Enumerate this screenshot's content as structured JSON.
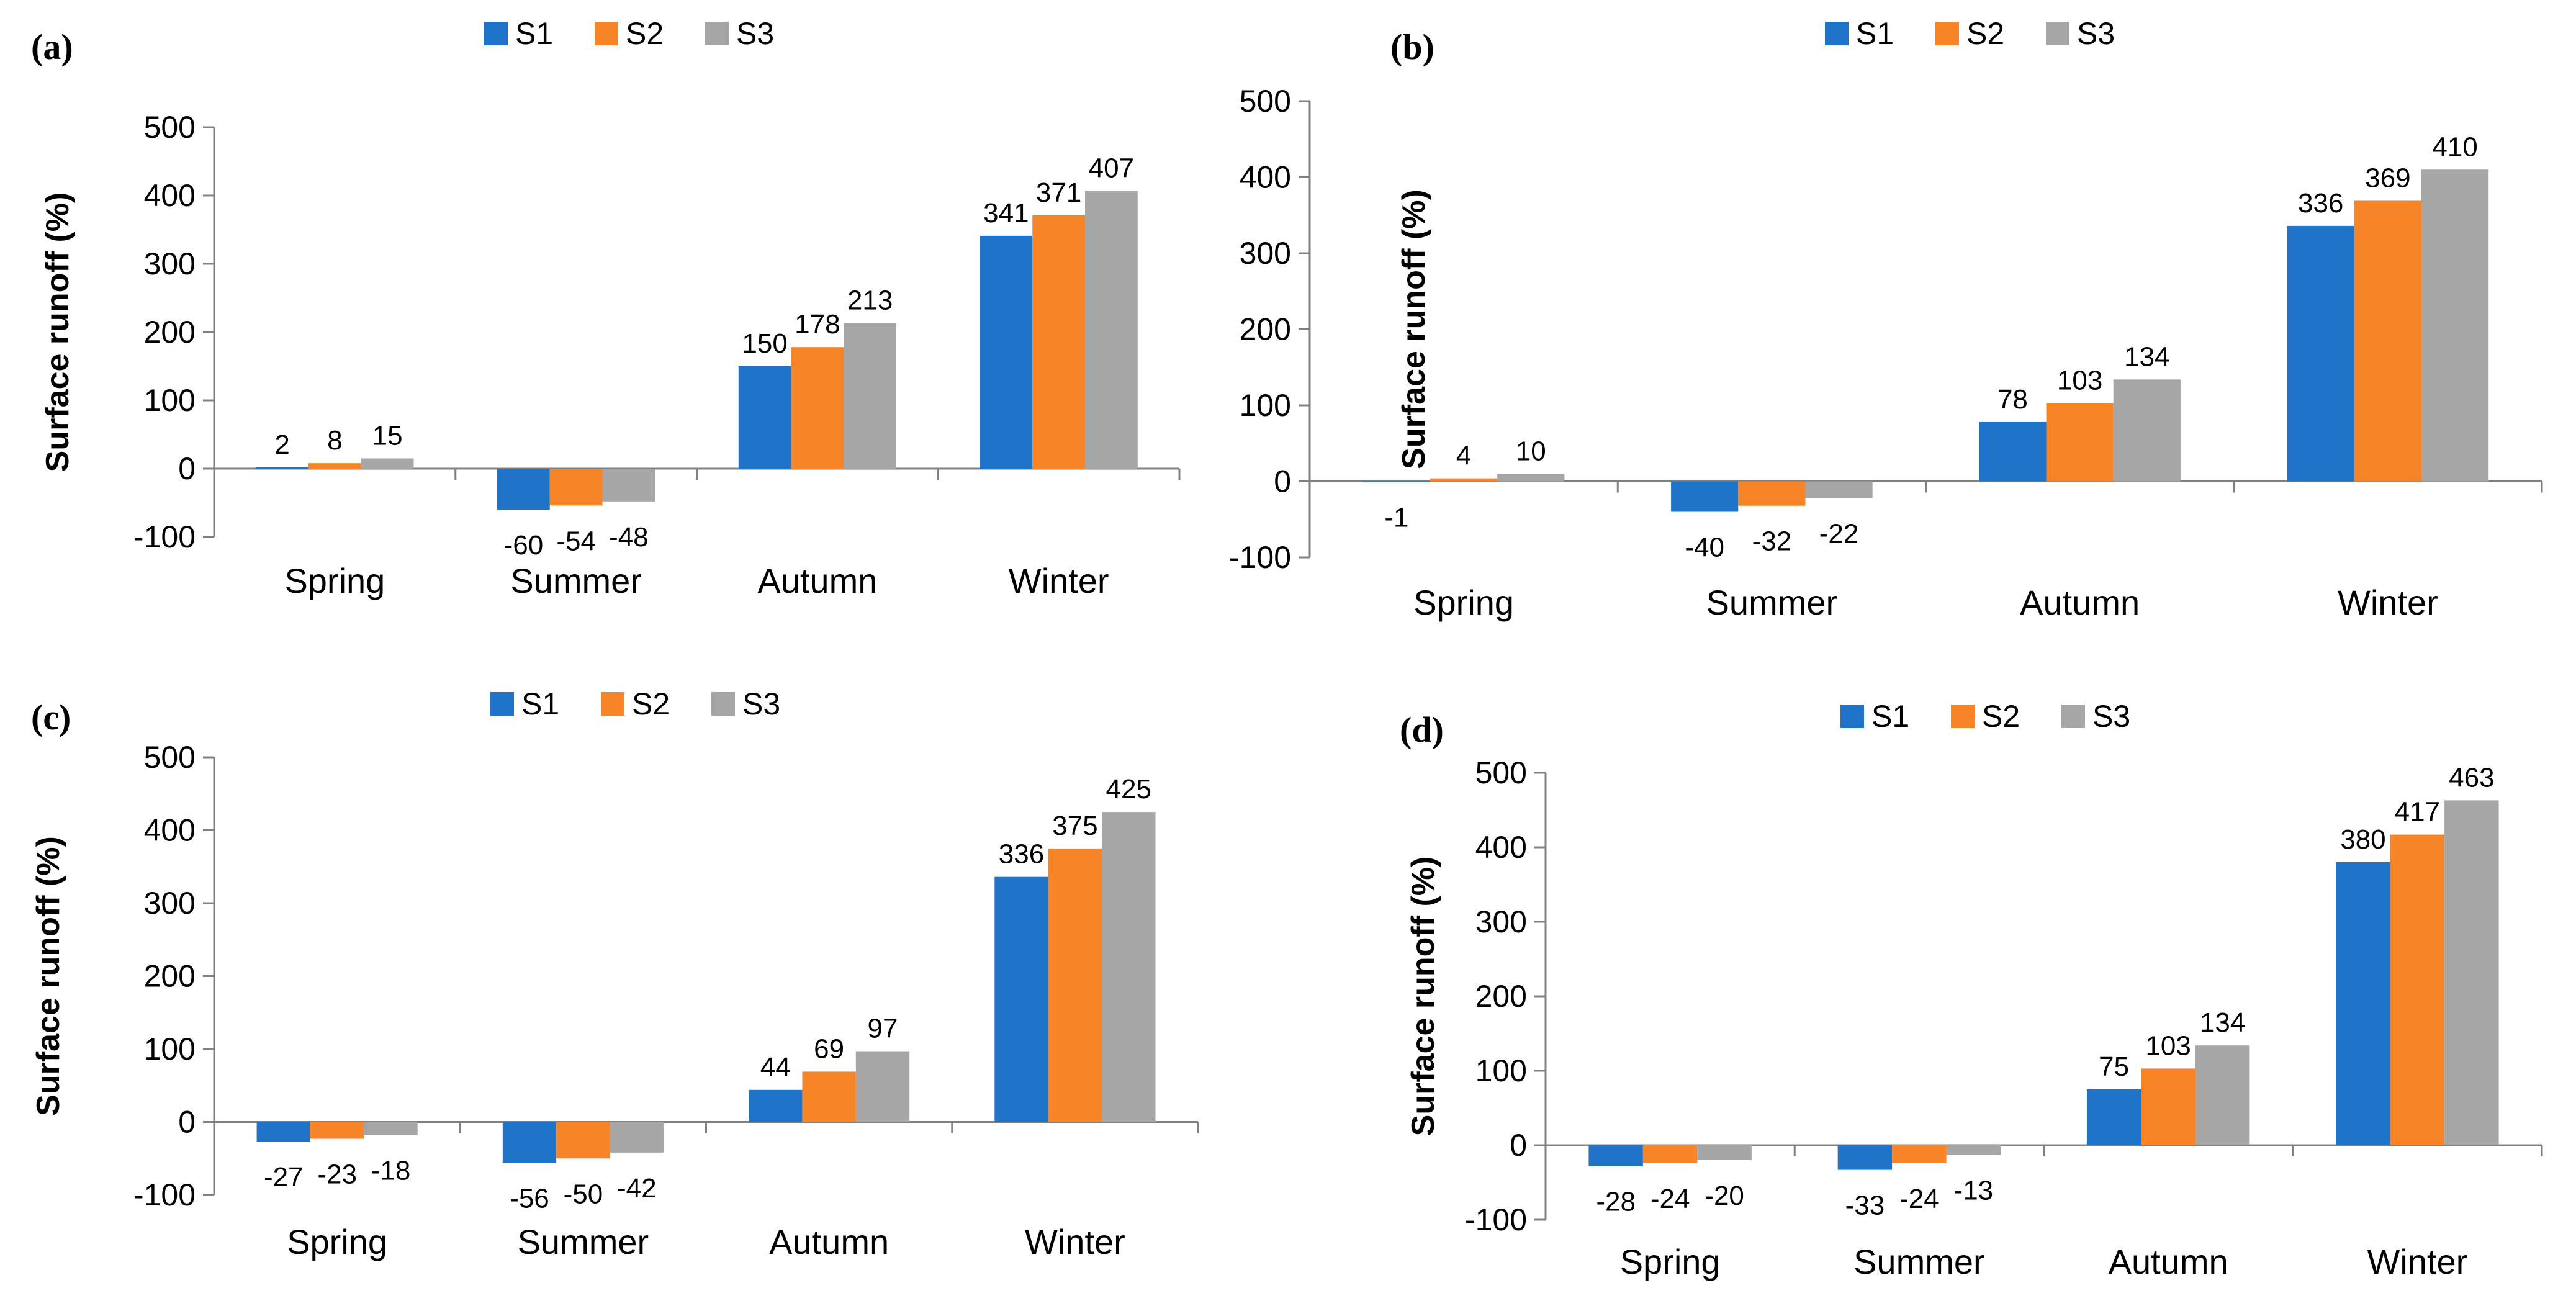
{
  "colors": {
    "S1": "#1f73c9",
    "S2": "#f88428",
    "S3": "#a6a6a6"
  },
  "chart_data": [
    {
      "panel": "(a)",
      "type": "bar",
      "categories": [
        "Spring",
        "Summer",
        "Autumn",
        "Winter"
      ],
      "series": [
        {
          "name": "S1",
          "values": [
            2,
            -60,
            150,
            341
          ]
        },
        {
          "name": "S2",
          "values": [
            8,
            -54,
            178,
            371
          ]
        },
        {
          "name": "S3",
          "values": [
            15,
            -48,
            213,
            407
          ]
        }
      ],
      "ylabel": "Surface runoff (%)",
      "yticks": [
        "500",
        "400",
        "300",
        "200",
        "100",
        "0",
        "-100"
      ],
      "ylim": [
        -100,
        500
      ],
      "legend": "top-center"
    },
    {
      "panel": "(b)",
      "type": "bar",
      "categories": [
        "Spring",
        "Summer",
        "Autumn",
        "Winter"
      ],
      "series": [
        {
          "name": "S1",
          "values": [
            -1,
            -40,
            78,
            336
          ]
        },
        {
          "name": "S2",
          "values": [
            4,
            -32,
            103,
            369
          ]
        },
        {
          "name": "S3",
          "values": [
            10,
            -22,
            134,
            410
          ]
        }
      ],
      "ylabel": "Surface runoff (%)",
      "yticks": [
        "500",
        "400",
        "300",
        "200",
        "100",
        "0",
        "-100"
      ],
      "ylim": [
        -100,
        500
      ],
      "legend": "top-center"
    },
    {
      "panel": "(c)",
      "type": "bar",
      "categories": [
        "Spring",
        "Summer",
        "Autumn",
        "Winter"
      ],
      "series": [
        {
          "name": "S1",
          "values": [
            -27,
            -56,
            44,
            336
          ]
        },
        {
          "name": "S2",
          "values": [
            -23,
            -50,
            69,
            375
          ]
        },
        {
          "name": "S3",
          "values": [
            -18,
            -42,
            97,
            425
          ]
        }
      ],
      "ylabel": "Surface runoff (%)",
      "yticks": [
        "500",
        "400",
        "300",
        "200",
        "100",
        "0",
        "-100"
      ],
      "ylim": [
        -100,
        500
      ],
      "legend": "top-center"
    },
    {
      "panel": "(d)",
      "type": "bar",
      "categories": [
        "Spring",
        "Summer",
        "Autumn",
        "Winter"
      ],
      "series": [
        {
          "name": "S1",
          "values": [
            -28,
            -33,
            75,
            380
          ]
        },
        {
          "name": "S2",
          "values": [
            -24,
            -24,
            103,
            417
          ]
        },
        {
          "name": "S3",
          "values": [
            -20,
            -13,
            134,
            463
          ]
        }
      ],
      "ylabel": "Surface runoff (%)",
      "yticks": [
        "500",
        "400",
        "300",
        "200",
        "100",
        "0",
        "-100"
      ],
      "ylim": [
        -100,
        500
      ],
      "legend": "top-center"
    }
  ]
}
